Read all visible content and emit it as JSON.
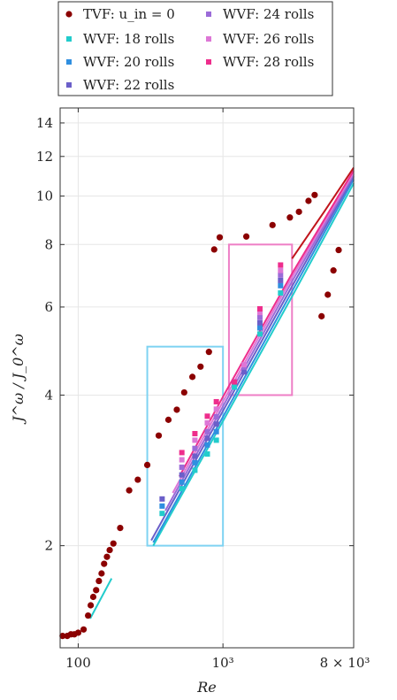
{
  "chart_data": {
    "type": "scatter",
    "xscale": "log",
    "yscale": "log",
    "xlim": [
      75,
      8000
    ],
    "ylim": [
      1.25,
      15
    ],
    "xlabel": "Re",
    "ylabel": "J^ω / J_0^ω",
    "xticks": [
      {
        "value": 100,
        "label": "100"
      },
      {
        "value": 1000,
        "label": "10³"
      },
      {
        "value": 8000,
        "label": "8 × 10³"
      }
    ],
    "yticks": [
      {
        "value": 2,
        "label": "2"
      },
      {
        "value": 4,
        "label": "4"
      },
      {
        "value": 6,
        "label": "6"
      },
      {
        "value": 8,
        "label": "8"
      },
      {
        "value": 10,
        "label": "10"
      },
      {
        "value": 12,
        "label": "12"
      },
      {
        "value": 14,
        "label": "14"
      }
    ],
    "grid": true,
    "legend_position": "top",
    "legend": [
      {
        "key": "tvf",
        "label": "TVF: u_in = 0",
        "color": "#8b0000",
        "marker": "circle"
      },
      {
        "key": "wvf18",
        "label": "WVF: 18 rolls",
        "color": "#22cccc",
        "marker": "square"
      },
      {
        "key": "wvf20",
        "label": "WVF: 20 rolls",
        "color": "#2f8fe0",
        "marker": "square"
      },
      {
        "key": "wvf22",
        "label": "WVF: 22 rolls",
        "color": "#6b5fc9",
        "marker": "square"
      },
      {
        "key": "wvf24",
        "label": "WVF: 24 rolls",
        "color": "#9b6bd8",
        "marker": "square"
      },
      {
        "key": "wvf26",
        "label": "WVF: 26 rolls",
        "color": "#dd77d6",
        "marker": "square"
      },
      {
        "key": "wvf28",
        "label": "WVF: 28 rolls",
        "color": "#ee2d8c",
        "marker": "square"
      }
    ],
    "series": [
      {
        "key": "tvf",
        "color": "#8b0000",
        "marker": "circle",
        "x": [
          78,
          84,
          89,
          94,
          100,
          109,
          117,
          122,
          127,
          133,
          139,
          145,
          151,
          158,
          165,
          175,
          195,
          225,
          258,
          300,
          360,
          420,
          480,
          540,
          615,
          700,
          800,
          870,
          950,
          1450,
          2200,
          2900,
          3350,
          3900,
          4300,
          4800,
          5300,
          5800,
          6300
        ],
        "y": [
          1.32,
          1.32,
          1.33,
          1.33,
          1.34,
          1.36,
          1.45,
          1.52,
          1.58,
          1.63,
          1.7,
          1.76,
          1.84,
          1.9,
          1.96,
          2.02,
          2.17,
          2.58,
          2.71,
          2.9,
          3.32,
          3.57,
          3.74,
          4.05,
          4.35,
          4.56,
          4.88,
          7.82,
          8.27,
          8.3,
          8.75,
          9.06,
          9.3,
          9.78,
          10.05,
          5.75,
          6.35,
          7.1,
          7.8
        ]
      },
      {
        "key": "wvf18",
        "color": "#22cccc",
        "marker": "square",
        "x": [
          380,
          520,
          640,
          780,
          900,
          1200,
          1800,
          2500
        ],
        "y": [
          2.32,
          2.6,
          2.83,
          3.05,
          3.25,
          4.15,
          5.3,
          6.4
        ]
      },
      {
        "key": "wvf20",
        "color": "#2f8fe0",
        "marker": "square",
        "x": [
          380,
          520,
          640,
          780,
          900,
          1200,
          1800,
          2500
        ],
        "y": [
          2.4,
          2.68,
          2.93,
          3.18,
          3.38,
          4.25,
          5.45,
          6.62
        ]
      },
      {
        "key": "wvf22",
        "color": "#6b5fc9",
        "marker": "square",
        "x": [
          380,
          520,
          640,
          780,
          900,
          1400,
          1800,
          2500
        ],
        "y": [
          2.48,
          2.77,
          3.02,
          3.28,
          3.5,
          4.45,
          5.58,
          6.78
        ]
      },
      {
        "key": "wvf24",
        "color": "#9b6bd8",
        "marker": "square",
        "x": [
          520,
          640,
          780,
          900,
          1400,
          1800,
          2500
        ],
        "y": [
          2.87,
          3.13,
          3.38,
          3.62,
          4.55,
          5.72,
          6.95
        ]
      },
      {
        "key": "wvf26",
        "color": "#dd77d6",
        "marker": "square",
        "x": [
          520,
          640,
          780,
          900,
          1400,
          1800,
          2500
        ],
        "y": [
          2.97,
          3.25,
          3.52,
          3.75,
          4.6,
          5.85,
          7.1
        ]
      },
      {
        "key": "wvf28",
        "color": "#ee2d8c",
        "marker": "square",
        "x": [
          520,
          640,
          780,
          900,
          1200,
          1800,
          2500
        ],
        "y": [
          3.07,
          3.35,
          3.63,
          3.88,
          4.25,
          5.95,
          7.28
        ]
      }
    ],
    "lines": [
      {
        "key": "wvf18",
        "color": "#22cccc",
        "x": [
          330,
          1000,
          3000,
          8000
        ],
        "y": [
          2.0,
          3.55,
          6.3,
          10.6
        ]
      },
      {
        "key": "wvf20",
        "color": "#2f8fe0",
        "x": [
          330,
          1000,
          3000,
          8000
        ],
        "y": [
          2.03,
          3.62,
          6.45,
          10.8
        ]
      },
      {
        "key": "wvf22",
        "color": "#6b5fc9",
        "x": [
          320,
          1000,
          3000,
          8000
        ],
        "y": [
          2.05,
          3.72,
          6.6,
          10.95
        ]
      },
      {
        "key": "wvf24",
        "color": "#9b6bd8",
        "x": [
          400,
          1000,
          3000,
          8000
        ],
        "y": [
          2.35,
          3.8,
          6.75,
          11.05
        ]
      },
      {
        "key": "wvf26",
        "color": "#dd77d6",
        "x": [
          450,
          1000,
          3000,
          8000
        ],
        "y": [
          2.55,
          3.88,
          6.88,
          11.15
        ]
      },
      {
        "key": "wvf28",
        "color": "#ee2d8c",
        "x": [
          500,
          1000,
          3000,
          8000
        ],
        "y": [
          2.75,
          3.97,
          7.0,
          11.25
        ]
      },
      {
        "key": "tvf",
        "color": "#c0141b",
        "x": [
          3000,
          5000,
          8000
        ],
        "y": [
          7.5,
          9.3,
          11.4
        ]
      },
      {
        "key": "wvf18",
        "color": "#22cccc",
        "x": [
          121,
          170
        ],
        "y": [
          1.43,
          1.72
        ]
      }
    ],
    "boxes": [
      {
        "color": "#7fd3f2",
        "x": [
          300,
          1000
        ],
        "y": [
          2.0,
          5.0
        ]
      },
      {
        "color": "#ee7fc6",
        "x": [
          1100,
          3000
        ],
        "y": [
          4.0,
          8.0
        ]
      }
    ]
  }
}
